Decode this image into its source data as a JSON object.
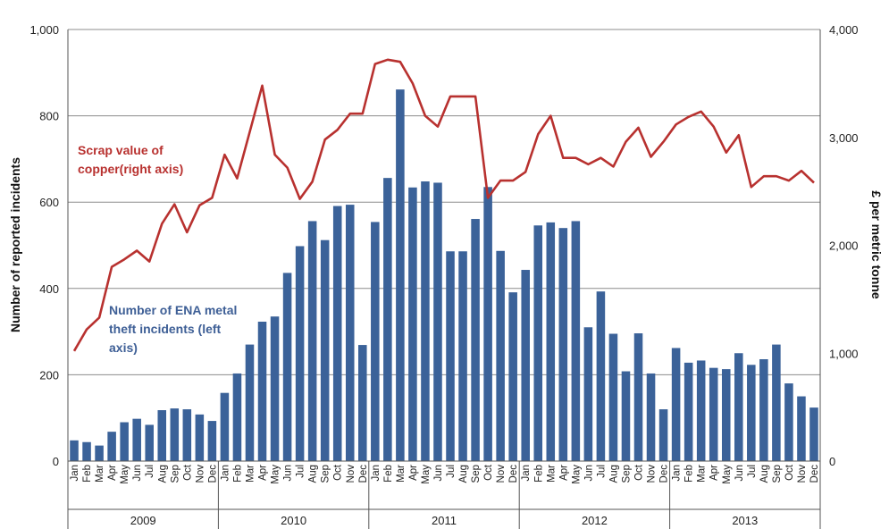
{
  "chart_data": {
    "type": "bar+line",
    "title": "",
    "ylabel_left": "Number of reported incidents",
    "ylabel_right": "£ per metric tonne",
    "ylim_left": [
      0,
      1000
    ],
    "ylim_right": [
      0,
      4000
    ],
    "yticks_left": [
      "0",
      "200",
      "400",
      "600",
      "800",
      "1,000"
    ],
    "yticks_right": [
      "0",
      "1,000",
      "2,000",
      "3,000",
      "4,000"
    ],
    "months": [
      "Jan",
      "Feb",
      "Mar",
      "Apr",
      "May",
      "Jun",
      "Jul",
      "Aug",
      "Sep",
      "Oct",
      "Nov",
      "Dec"
    ],
    "years": [
      "2009",
      "2010",
      "2011",
      "2012",
      "2013"
    ],
    "grid": true,
    "series": [
      {
        "name": "Number of ENA metal theft incidents (left axis)",
        "label_lines": [
          "Number of ENA metal",
          "theft incidents (left",
          "axis)"
        ],
        "type": "bar",
        "axis": "left",
        "color": "#3b6299",
        "values": [
          48,
          44,
          36,
          68,
          90,
          98,
          84,
          118,
          122,
          120,
          108,
          93,
          158,
          203,
          270,
          323,
          335,
          436,
          498,
          556,
          512,
          591,
          594,
          269,
          554,
          656,
          861,
          634,
          648,
          645,
          486,
          486,
          561,
          635,
          487,
          391,
          443,
          546,
          553,
          540,
          556,
          310,
          393,
          295,
          208,
          296,
          203,
          120,
          262,
          228,
          233,
          216,
          213,
          250,
          223,
          236,
          270,
          180,
          150,
          124
        ]
      },
      {
        "name": "Scrap value of copper (right axis)",
        "label_lines": [
          "Scrap value of",
          "copper(right  axis)"
        ],
        "type": "line",
        "axis": "right",
        "color": "#b8312f",
        "values": [
          1020,
          1220,
          1330,
          1800,
          1870,
          1950,
          1850,
          2200,
          2380,
          2120,
          2370,
          2440,
          2840,
          2620,
          3050,
          3480,
          2840,
          2720,
          2430,
          2590,
          2980,
          3070,
          3220,
          3220,
          3680,
          3720,
          3700,
          3500,
          3200,
          3100,
          3380,
          3380,
          3380,
          2440,
          2600,
          2600,
          2680,
          3030,
          3200,
          2810,
          2810,
          2750,
          2810,
          2730,
          2960,
          3090,
          2820,
          2960,
          3120,
          3190,
          3240,
          3100,
          2860,
          3020,
          2540,
          2640,
          2640,
          2600,
          2690,
          2580
        ]
      }
    ]
  }
}
